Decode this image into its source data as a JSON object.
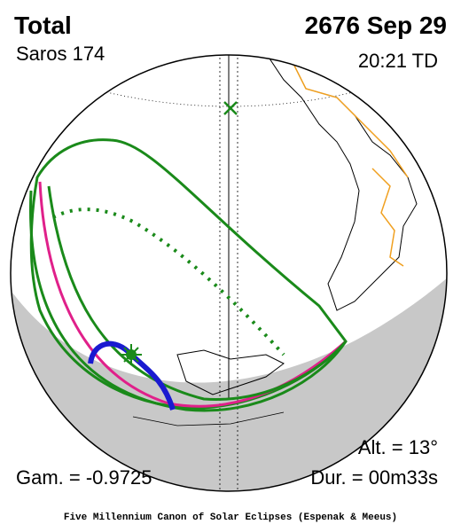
{
  "header": {
    "type": "Total",
    "saros": "Saros 174",
    "date": "2676 Sep 29",
    "time": "20:21 TD"
  },
  "info": {
    "altitude": "Alt. = 13°",
    "gamma": "Gam. = -0.9725",
    "duration": "Dur. = 00m33s"
  },
  "footer": {
    "credit": "Five Millennium Canon of Solar Eclipses (Espenak & Meeus)"
  }
}
